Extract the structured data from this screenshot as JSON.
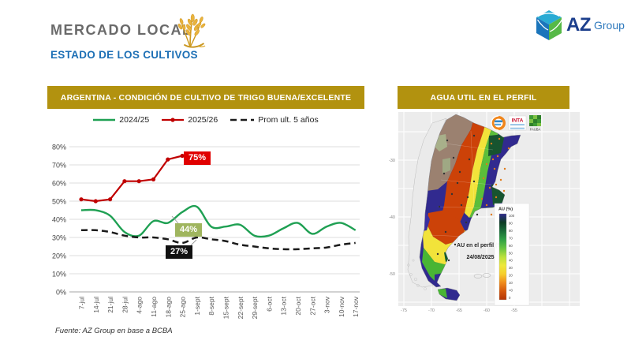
{
  "theme": {
    "gold": "#B2920F",
    "title_gray": "#6A6A6A",
    "subtitle_blue": "#1C6FB5"
  },
  "header": {
    "title": "MERCADO LOCAL",
    "subtitle": "ESTADO DE LOS CULTIVOS",
    "logo_primary": "AZ",
    "logo_secondary": "Group"
  },
  "left_panel": {
    "header": "ARGENTINA - CONDICIÓN DE CULTIVO DE TRIGO BUENA/EXCELENTE",
    "source": "Fuente: AZ Group en base a BCBA"
  },
  "right_panel": {
    "header": "AGUA UTIL EN EL PERFIL",
    "map": {
      "annotation_line1": "AU en el perfil (%)",
      "annotation_line2": "24/08/2025",
      "legend_title": "AU (%)",
      "legend_labels": [
        "100",
        "90",
        "80",
        "70",
        "60",
        "50",
        "40",
        "30",
        "20",
        "10",
        "<0",
        "0"
      ],
      "scale_colors": [
        {
          "v": 0,
          "color": "#B23305"
        },
        {
          "v": 10,
          "color": "#D4560B"
        },
        {
          "v": 20,
          "color": "#F08C1B"
        },
        {
          "v": 30,
          "color": "#F6CE2C"
        },
        {
          "v": 40,
          "color": "#EDE83B"
        },
        {
          "v": 50,
          "color": "#B8E03C"
        },
        {
          "v": 60,
          "color": "#66C441"
        },
        {
          "v": 70,
          "color": "#2FA045"
        },
        {
          "v": 80,
          "color": "#186C38"
        },
        {
          "v": 90,
          "color": "#0B3B23"
        },
        {
          "v": 100,
          "color": "#2F2A8E"
        }
      ],
      "x_ticks": [
        "-75",
        "-70",
        "-65",
        "-60",
        "-55"
      ],
      "y_ticks": [
        "-30",
        "-40",
        "-50"
      ],
      "logos": {
        "inta": "INTA",
        "fauba": "FAUBA"
      }
    }
  },
  "chart_data": {
    "type": "line",
    "title": "ARGENTINA - CONDICIÓN DE CULTIVO DE TRIGO BUENA/EXCELENTE",
    "grid": "horizontal",
    "legend_position": "top",
    "ylim": [
      0,
      80
    ],
    "y_ticks": [
      "0%",
      "10%",
      "20%",
      "30%",
      "40%",
      "50%",
      "60%",
      "70%",
      "80%"
    ],
    "categories": [
      "7-jul",
      "14-jul",
      "21-jul",
      "28-jul",
      "4-ago",
      "11-ago",
      "18-ago",
      "25-ago",
      "1-sept",
      "8-sept",
      "15-sept",
      "22-sept",
      "29-sept",
      "6-oct",
      "13-oct",
      "20-oct",
      "27-oct",
      "3-nov",
      "10-nov",
      "17-nov"
    ],
    "series": [
      {
        "name": "2024/25",
        "color": "#1FA053",
        "style": "solid",
        "values": [
          45,
          45,
          42,
          33,
          31,
          39,
          38,
          44,
          47,
          36,
          36,
          37,
          31,
          31,
          35,
          38,
          32,
          36,
          38,
          34
        ]
      },
      {
        "name": "2025/26",
        "color": "#C00000",
        "style": "solid_markers",
        "values": [
          51,
          50,
          51,
          61,
          61,
          62,
          73,
          75
        ]
      },
      {
        "name": "Prom ult. 5 años",
        "color": "#1A1A1A",
        "style": "dashed",
        "values": [
          34,
          34,
          33,
          31,
          30,
          30,
          29,
          27,
          30,
          29,
          28,
          26,
          25,
          24,
          23.5,
          23.5,
          24,
          24.5,
          26,
          27
        ]
      }
    ],
    "annotations": [
      {
        "text": "75%",
        "series": "2025/26",
        "category": "25-ago",
        "bg": "#E00000"
      },
      {
        "text": "44%",
        "series": "2024/25",
        "category": "25-ago",
        "bg": "#9FB55E"
      },
      {
        "text": "27%",
        "series": "Prom ult. 5 años",
        "category": "25-ago",
        "bg": "#111111"
      }
    ]
  }
}
